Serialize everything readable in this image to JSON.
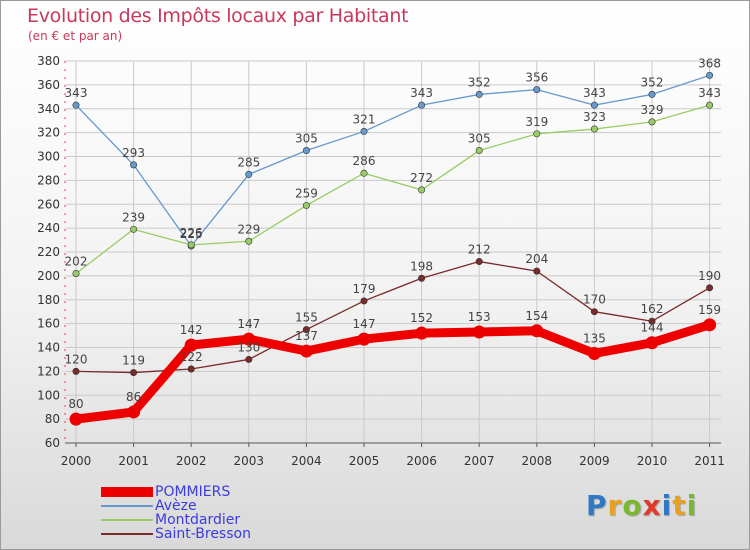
{
  "title": "Evolution des Impôts locaux par Habitant",
  "subtitle": "(en € et par an)",
  "brand": {
    "letters": [
      "P",
      "r",
      "o",
      "x",
      "i",
      "t",
      "i"
    ],
    "colors": [
      "#2f78c4",
      "#e8a020",
      "#7ab830",
      "#e03a2a",
      "#2f78c4",
      "#e8a020",
      "#7ab830"
    ]
  },
  "chart_data": {
    "type": "line",
    "x": [
      2000,
      2001,
      2002,
      2003,
      2004,
      2005,
      2006,
      2007,
      2008,
      2009,
      2010,
      2011
    ],
    "x_tick_labels": [
      "2000",
      "2001",
      "2002",
      "2003",
      "2004",
      "2005",
      "2006",
      "2007",
      "2008",
      "2009",
      "2010",
      "2011"
    ],
    "ylim": [
      60,
      380
    ],
    "y_ticks": [
      60,
      80,
      100,
      120,
      140,
      160,
      180,
      200,
      220,
      240,
      260,
      280,
      300,
      320,
      340,
      360,
      380
    ],
    "y_tick_labels": [
      "60",
      "80",
      "100",
      "120",
      "140",
      "160",
      "180",
      "200",
      "220",
      "240",
      "260",
      "280",
      "300",
      "320",
      "340",
      "360",
      "380"
    ],
    "grid": true,
    "legend_position": "bottom-left",
    "series": [
      {
        "name": "POMMIERS",
        "color": "#ee0000",
        "emphasis": "thick",
        "values": [
          80,
          86,
          142,
          147,
          137,
          147,
          152,
          153,
          154,
          135,
          144,
          159
        ],
        "labels": [
          "80",
          "86",
          "142",
          "147",
          "137",
          "147",
          "152",
          "153",
          "154",
          "135",
          "144",
          "159"
        ]
      },
      {
        "name": "Avèze",
        "color": "#6699cc",
        "values": [
          343,
          293,
          225,
          285,
          305,
          321,
          343,
          352,
          356,
          343,
          352,
          368
        ],
        "labels": [
          "343",
          "293",
          "225",
          "285",
          "305",
          "321",
          "343",
          "352",
          "356",
          "343",
          "352",
          "368"
        ]
      },
      {
        "name": "Montdardier",
        "color": "#99cc66",
        "values": [
          202,
          239,
          226,
          229,
          259,
          286,
          272,
          305,
          319,
          323,
          329,
          343
        ],
        "labels": [
          "202",
          "239",
          "226",
          "229",
          "259",
          "286",
          "272",
          "305",
          "319",
          "323",
          "329",
          "343"
        ]
      },
      {
        "name": "Saint-Bresson",
        "color": "#7a2a2a",
        "values": [
          120,
          119,
          122,
          130,
          155,
          179,
          198,
          212,
          204,
          170,
          162,
          190
        ],
        "labels": [
          "120",
          "119",
          "122",
          "130",
          "155",
          "179",
          "198",
          "212",
          "204",
          "170",
          "162",
          "190"
        ]
      }
    ]
  }
}
